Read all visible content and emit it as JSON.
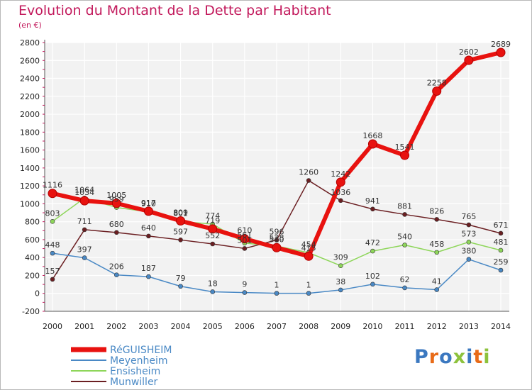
{
  "chart_data": {
    "type": "line",
    "title": "Evolution du Montant de la Dette par Habitant",
    "subtitle": "(en €)",
    "x": [
      "2000",
      "2001",
      "2002",
      "2003",
      "2004",
      "2005",
      "2006",
      "2007",
      "2008",
      "2009",
      "2010",
      "2011",
      "2012",
      "2013",
      "2014"
    ],
    "ylim": [
      -200,
      2800
    ],
    "yticks": [
      -200,
      0,
      200,
      400,
      600,
      800,
      1000,
      1200,
      1400,
      1600,
      1800,
      2000,
      2200,
      2400,
      2600,
      2800
    ],
    "grid": true,
    "legend_position": "bottom-left",
    "series": [
      {
        "name": "RéGUISHEIM",
        "color": "#e8120f",
        "values": [
          1116,
          1034,
          1005,
          917,
          809,
          719,
          610,
          510,
          415,
          1242,
          1668,
          1541,
          2258,
          2602,
          2689
        ]
      },
      {
        "name": "Meyenheim",
        "color": "#4a89c5",
        "values": [
          448,
          397,
          206,
          187,
          79,
          18,
          9,
          1,
          1,
          38,
          102,
          62,
          41,
          380,
          259
        ]
      },
      {
        "name": "Ensisheim",
        "color": "#8ed65a",
        "values": [
          803,
          1064,
          959,
          910,
          801,
          774,
          561,
          528,
          454,
          309,
          472,
          540,
          458,
          573,
          481
        ]
      },
      {
        "name": "Munwiller",
        "color": "#6b1f22",
        "values": [
          157,
          711,
          680,
          640,
          597,
          552,
          501,
          596,
          1260,
          1036,
          941,
          881,
          826,
          765,
          671
        ]
      }
    ]
  },
  "logo": {
    "text": "Proxiti",
    "colors": [
      "#3b78c0",
      "#e86b18",
      "#3b78c0",
      "#8dc23c",
      "#3b78c0",
      "#e86b18",
      "#8dc23c"
    ]
  }
}
